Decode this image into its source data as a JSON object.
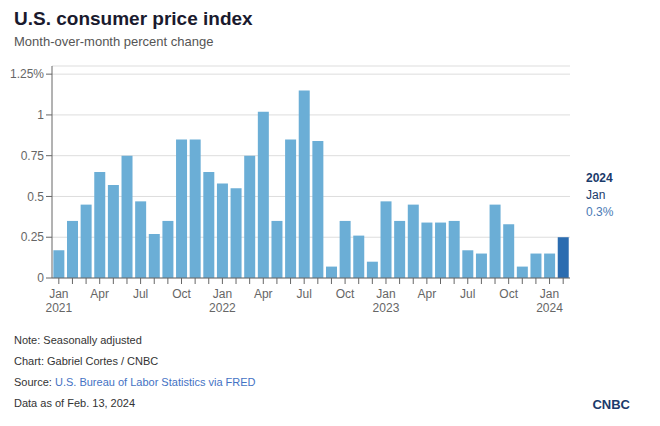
{
  "chart_data": {
    "type": "bar",
    "title": "U.S. consumer price index",
    "subtitle": "Month-over-month percent change",
    "categories": [
      "Jan\n2021",
      null,
      null,
      "Apr",
      null,
      null,
      "Jul",
      null,
      null,
      "Oct",
      null,
      null,
      "Jan\n2022",
      null,
      null,
      "Apr",
      null,
      null,
      "Jul",
      null,
      null,
      "Oct",
      null,
      null,
      "Jan\n2023",
      null,
      null,
      "Apr",
      null,
      null,
      "Jul",
      null,
      null,
      "Oct",
      null,
      null,
      "Jan\n2024",
      null
    ],
    "values": [
      0.17,
      0.35,
      0.45,
      0.65,
      0.57,
      0.75,
      0.47,
      0.27,
      0.35,
      0.85,
      0.85,
      0.65,
      0.58,
      0.55,
      0.75,
      1.02,
      0.35,
      0.85,
      1.15,
      0.84,
      0.07,
      0.35,
      0.26,
      0.1,
      0.47,
      0.35,
      0.45,
      0.34,
      0.34,
      0.35,
      0.17,
      0.15,
      0.45,
      0.33,
      0.07,
      0.15,
      0.15,
      0.25
    ],
    "colors": [
      "#6baed6",
      "#6baed6",
      "#6baed6",
      "#6baed6",
      "#6baed6",
      "#6baed6",
      "#6baed6",
      "#6baed6",
      "#6baed6",
      "#6baed6",
      "#6baed6",
      "#6baed6",
      "#6baed6",
      "#6baed6",
      "#6baed6",
      "#6baed6",
      "#6baed6",
      "#6baed6",
      "#6baed6",
      "#6baed6",
      "#6baed6",
      "#6baed6",
      "#6baed6",
      "#6baed6",
      "#6baed6",
      "#6baed6",
      "#6baed6",
      "#6baed6",
      "#6baed6",
      "#6baed6",
      "#6baed6",
      "#6baed6",
      "#6baed6",
      "#6baed6",
      "#6baed6",
      "#6baed6",
      "#6baed6",
      "#2b6cb0"
    ],
    "ylim": [
      0,
      1.3
    ],
    "yticks": [
      0,
      0.25,
      0.5,
      0.75,
      1,
      {
        "value": 1.25,
        "label": "1.25%"
      }
    ],
    "grid": true,
    "annotations": [
      "2024",
      "Jan",
      "0.3%"
    ],
    "note": "Note: Seasonally adjusted",
    "chart_credit": "Chart: Gabriel Cortes / CNBC",
    "source_prefix": "Source: ",
    "source_link": "U.S. Bureau of Labor Statistics via FRED",
    "data_as_of": "Data as of Feb. 13, 2024",
    "logo": "CNBC"
  }
}
